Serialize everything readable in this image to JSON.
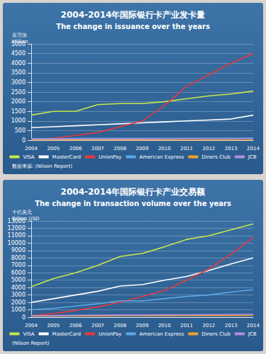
{
  "chart_data": [
    {
      "type": "line",
      "title": "2004-2014年国际银行卡产业发卡量",
      "subtitle": "The change in issuance over the years",
      "ylabel": "百万张\nMillion",
      "source": "数据来源: (Nilson Report)",
      "categories": [
        "2004",
        "2005",
        "2006",
        "2007",
        "2008",
        "2009",
        "2010",
        "2011",
        "2012",
        "2013",
        "2014"
      ],
      "series": [
        {
          "name": "VISA",
          "color": "#c8e64b",
          "values": [
            1300,
            1500,
            1500,
            1850,
            1900,
            1900,
            2000,
            2150,
            2300,
            2400,
            2550
          ]
        },
        {
          "name": "MasterCard",
          "color": "#ffffff",
          "values": [
            650,
            700,
            750,
            800,
            850,
            900,
            950,
            1000,
            1050,
            1100,
            1300
          ]
        },
        {
          "name": "UnionPay",
          "color": "#e8383d",
          "values": [
            50,
            100,
            250,
            400,
            700,
            1000,
            1800,
            2800,
            3400,
            4000,
            4500
          ]
        },
        {
          "name": "American Express",
          "color": "#5aa9e6",
          "values": [
            80,
            85,
            90,
            95,
            95,
            95,
            100,
            100,
            105,
            110,
            110
          ]
        },
        {
          "name": "Diners Club",
          "color": "#f0a030",
          "values": [
            10,
            10,
            10,
            10,
            10,
            10,
            10,
            10,
            10,
            10,
            10
          ]
        },
        {
          "name": "JCB",
          "color": "#b08ee0",
          "values": [
            60,
            60,
            65,
            65,
            70,
            70,
            75,
            80,
            85,
            85,
            90
          ]
        }
      ],
      "ylim": [
        0,
        5000
      ],
      "yticks": [
        0,
        500,
        1000,
        1500,
        2000,
        2500,
        3000,
        3500,
        4000,
        4500,
        5000
      ],
      "grid": true,
      "legend": "bottom"
    },
    {
      "type": "line",
      "title": "2004-2014年国际银行卡产业交易额",
      "subtitle": "The change in transaction volume over the years",
      "ylabel": "十亿美元\nBillion USD",
      "source": "(Nilson Report)",
      "categories": [
        "2004",
        "2005",
        "2006",
        "2007",
        "2008",
        "2009",
        "2010",
        "2011",
        "2012",
        "2013",
        "2014"
      ],
      "series": [
        {
          "name": "VISA",
          "color": "#c8e64b",
          "values": [
            4100,
            5200,
            6000,
            7000,
            8200,
            8600,
            9500,
            10500,
            11000,
            11800,
            12600
          ]
        },
        {
          "name": "MasterCard",
          "color": "#ffffff",
          "values": [
            2000,
            2500,
            3000,
            3500,
            4200,
            4400,
            5000,
            5500,
            6300,
            7200,
            8000
          ]
        },
        {
          "name": "UnionPay",
          "color": "#e8383d",
          "values": [
            200,
            500,
            900,
            1400,
            2000,
            2800,
            3600,
            5000,
            6500,
            8500,
            10800
          ]
        },
        {
          "name": "American Express",
          "color": "#5aa9e6",
          "values": [
            1000,
            1200,
            1500,
            1800,
            2200,
            2200,
            2500,
            2800,
            3000,
            3400,
            3700
          ]
        },
        {
          "name": "Diners Club",
          "color": "#f0a030",
          "values": [
            150,
            160,
            170,
            180,
            190,
            190,
            200,
            210,
            220,
            230,
            240
          ]
        },
        {
          "name": "JCB",
          "color": "#b08ee0",
          "values": [
            200,
            220,
            250,
            280,
            300,
            300,
            320,
            340,
            360,
            380,
            400
          ]
        }
      ],
      "ylim": [
        0,
        13000
      ],
      "yticks": [
        0,
        1000,
        2000,
        3000,
        4000,
        5000,
        6000,
        7000,
        8000,
        9000,
        10000,
        11000,
        12000,
        13000
      ],
      "grid": true,
      "legend": "bottom"
    }
  ]
}
